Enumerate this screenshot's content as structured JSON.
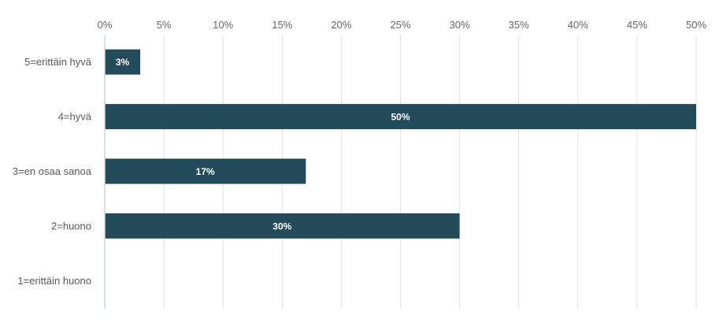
{
  "chart_data": {
    "type": "bar",
    "orientation": "horizontal",
    "categories": [
      "5=erittäin hyvä",
      "4=hyvä",
      "3=en osaa sanoa",
      "2=huono",
      "1=erittäin huono"
    ],
    "values": [
      3,
      50,
      17,
      30,
      0
    ],
    "value_labels": [
      "3%",
      "50%",
      "17%",
      "30%",
      ""
    ],
    "xlim": [
      0,
      50
    ],
    "xticks": [
      0,
      5,
      10,
      15,
      20,
      25,
      30,
      35,
      40,
      45,
      50
    ],
    "xtick_labels": [
      "0%",
      "5%",
      "10%",
      "15%",
      "20%",
      "25%",
      "30%",
      "35%",
      "40%",
      "45%",
      "50%"
    ],
    "x_axis_position": "top",
    "grid": true,
    "legend": "none",
    "bar_color": "#234b5a",
    "label_color": "#ffffff"
  }
}
